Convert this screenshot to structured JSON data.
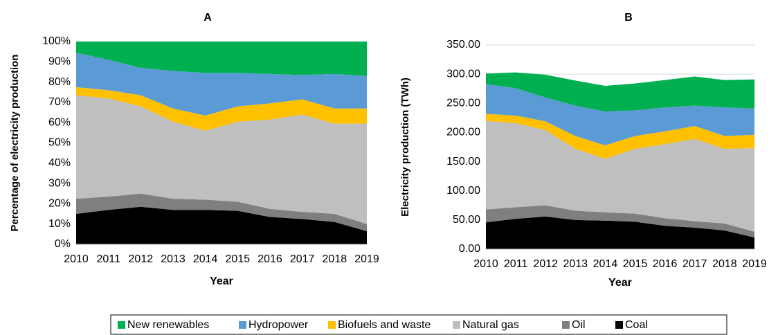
{
  "legend": [
    {
      "name": "New renewables",
      "color": "#00b050"
    },
    {
      "name": "Hydropower",
      "color": "#5b9bd5"
    },
    {
      "name": "Biofuels and waste",
      "color": "#ffc000"
    },
    {
      "name": "Natural gas",
      "color": "#bfbfbf"
    },
    {
      "name": "Oil",
      "color": "#7f7f7f"
    },
    {
      "name": "Coal",
      "color": "#000000"
    }
  ],
  "chart_data": [
    {
      "type": "stacked_area",
      "title": "A",
      "x_label": "Year",
      "y_label": "Percentage of electricity production",
      "categories": [
        "2010",
        "2011",
        "2012",
        "2013",
        "2014",
        "2015",
        "2016",
        "2017",
        "2018",
        "2019"
      ],
      "series": [
        {
          "values": [
            5.5,
            9,
            13,
            14.5,
            15.5,
            15.5,
            16,
            16.5,
            16,
            17
          ]
        },
        {
          "values": [
            17,
            15,
            13.5,
            18.5,
            21,
            16.5,
            14.5,
            12,
            17,
            16
          ]
        },
        {
          "values": [
            4,
            4,
            5.5,
            6.5,
            7.5,
            7.5,
            8,
            7.5,
            7.5,
            7.5
          ]
        },
        {
          "values": [
            51,
            48.5,
            43,
            38,
            34,
            39.5,
            44,
            48,
            44.5,
            49.5
          ]
        },
        {
          "values": [
            7.5,
            6.5,
            6.5,
            5.5,
            5,
            4.5,
            4,
            3.5,
            4,
            3.5
          ]
        },
        {
          "values": [
            15,
            17,
            18.5,
            17,
            17,
            16.5,
            13.5,
            12.5,
            11,
            6.5
          ]
        }
      ],
      "ylim": [
        0,
        100
      ],
      "yticks": [
        {
          "value": 0,
          "label": "0%"
        },
        {
          "value": 10,
          "label": "10%"
        },
        {
          "value": 20,
          "label": "20%"
        },
        {
          "value": 30,
          "label": "30%"
        },
        {
          "value": 40,
          "label": "40%"
        },
        {
          "value": 50,
          "label": "50%"
        },
        {
          "value": 60,
          "label": "60%"
        },
        {
          "value": 70,
          "label": "70%"
        },
        {
          "value": 80,
          "label": "80%"
        },
        {
          "value": 90,
          "label": "90%"
        },
        {
          "value": 100,
          "label": "100%"
        }
      ],
      "grid": false
    },
    {
      "type": "stacked_area",
      "title": "B",
      "x_label": "Year",
      "y_label": "Electricity production (TWh)",
      "categories": [
        "2010",
        "2011",
        "2012",
        "2013",
        "2014",
        "2015",
        "2016",
        "2017",
        "2018",
        "2019"
      ],
      "series": [
        {
          "values": [
            18,
            27,
            39,
            43,
            44,
            46,
            47,
            50,
            47,
            50
          ]
        },
        {
          "values": [
            51,
            47,
            41,
            52,
            58,
            44,
            41,
            35,
            49,
            45
          ]
        },
        {
          "values": [
            12,
            13,
            15,
            22,
            23,
            22,
            22,
            22,
            22,
            23
          ]
        },
        {
          "values": [
            152,
            144,
            129,
            106,
            92,
            111,
            127,
            141,
            128,
            143
          ]
        },
        {
          "values": [
            22,
            20,
            19,
            16,
            14,
            14,
            13,
            11,
            12,
            10
          ]
        },
        {
          "values": [
            46,
            52,
            56,
            50,
            49,
            47,
            40,
            37,
            32,
            20
          ]
        }
      ],
      "ylim": [
        0,
        350
      ],
      "yticks": [
        {
          "value": 0,
          "label": "0.00"
        },
        {
          "value": 50,
          "label": "50.00"
        },
        {
          "value": 100,
          "label": "100.00"
        },
        {
          "value": 150,
          "label": "150.00"
        },
        {
          "value": 200,
          "label": "200.00"
        },
        {
          "value": 250,
          "label": "250.00"
        },
        {
          "value": 300,
          "label": "300.00"
        },
        {
          "value": 350,
          "label": "350.00"
        }
      ],
      "grid": true
    }
  ]
}
